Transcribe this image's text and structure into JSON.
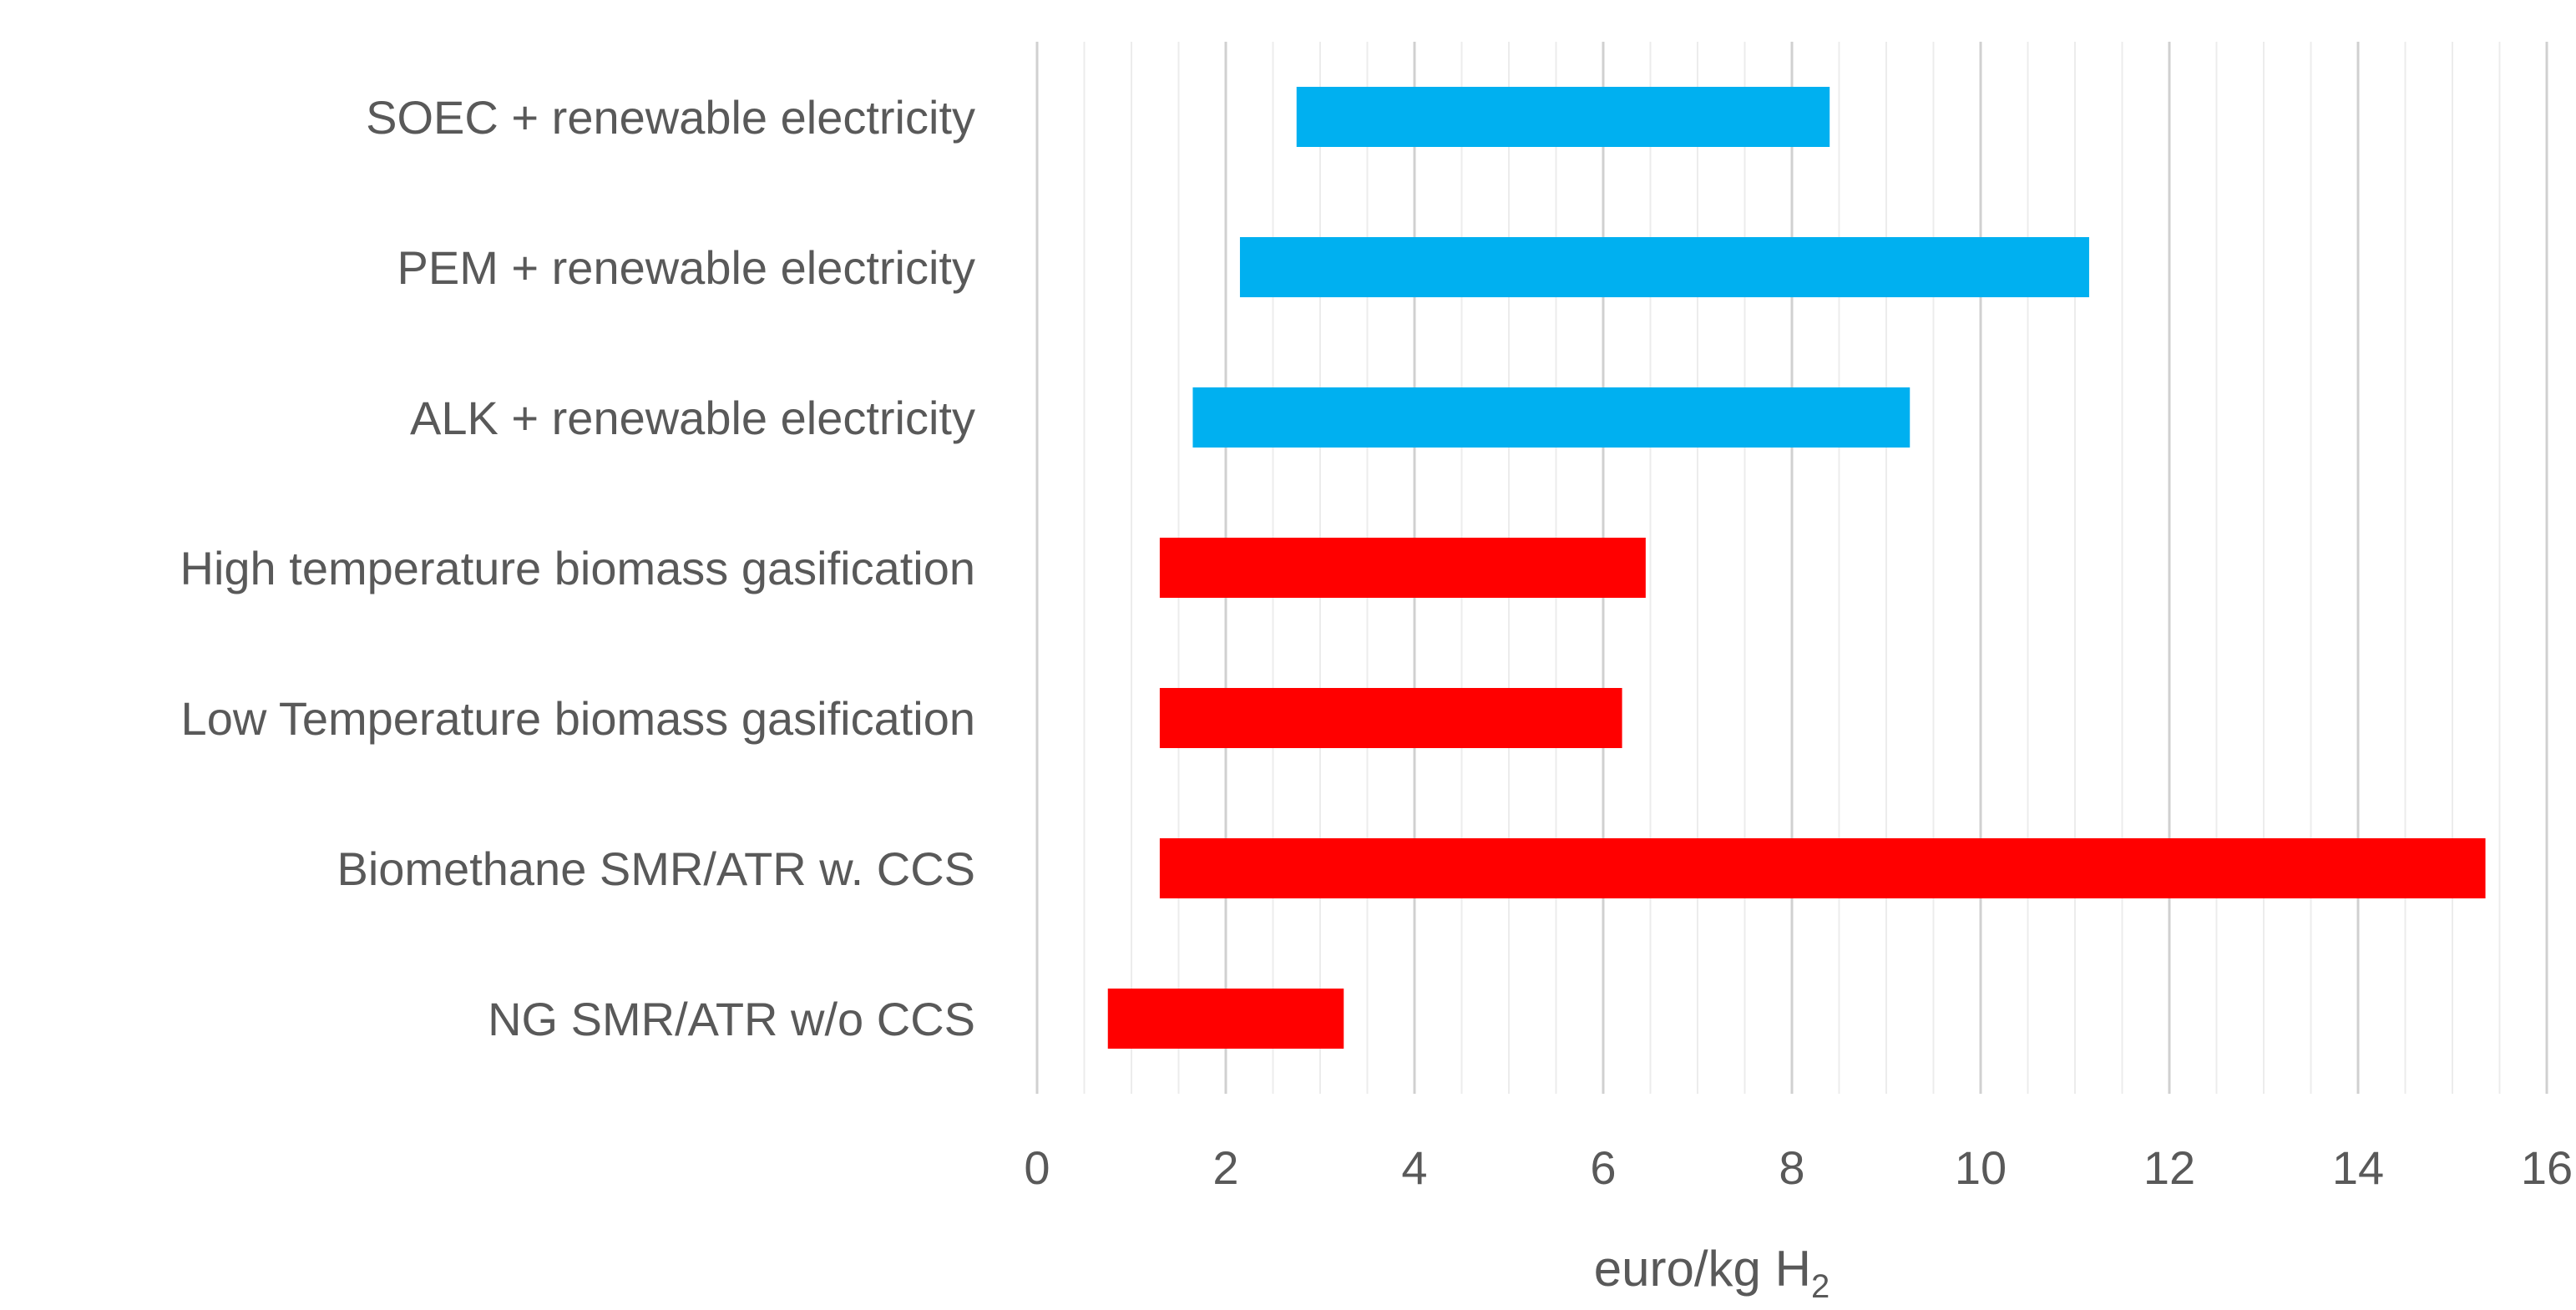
{
  "chart_data": {
    "type": "bar",
    "orientation": "horizontal",
    "title": "",
    "xlabel": "euro/kg H",
    "xlabel_subscript": "2",
    "ylabel": "",
    "xlim": [
      0,
      16
    ],
    "xticks": [
      0,
      2,
      4,
      6,
      8,
      10,
      12,
      14,
      16
    ],
    "grid": true,
    "colors": {
      "renewable": "#00b0f0",
      "fossil_bio": "#ff0000"
    },
    "categories": [
      "SOEC + renewable electricity",
      "PEM + renewable electricity",
      "ALK + renewable electricity",
      "High temperature biomass gasification",
      "Low Temperature biomass gasification",
      "Biomethane SMR/ATR w. CCS",
      "NG SMR/ATR w/o CCS"
    ],
    "ranges": [
      {
        "min": 2.75,
        "max": 8.4,
        "group": "renewable"
      },
      {
        "min": 2.15,
        "max": 11.15,
        "group": "renewable"
      },
      {
        "min": 1.65,
        "max": 9.25,
        "group": "renewable"
      },
      {
        "min": 1.3,
        "max": 6.45,
        "group": "fossil_bio"
      },
      {
        "min": 1.3,
        "max": 6.2,
        "group": "fossil_bio"
      },
      {
        "min": 1.3,
        "max": 15.35,
        "group": "fossil_bio"
      },
      {
        "min": 0.75,
        "max": 3.25,
        "group": "fossil_bio"
      }
    ]
  }
}
